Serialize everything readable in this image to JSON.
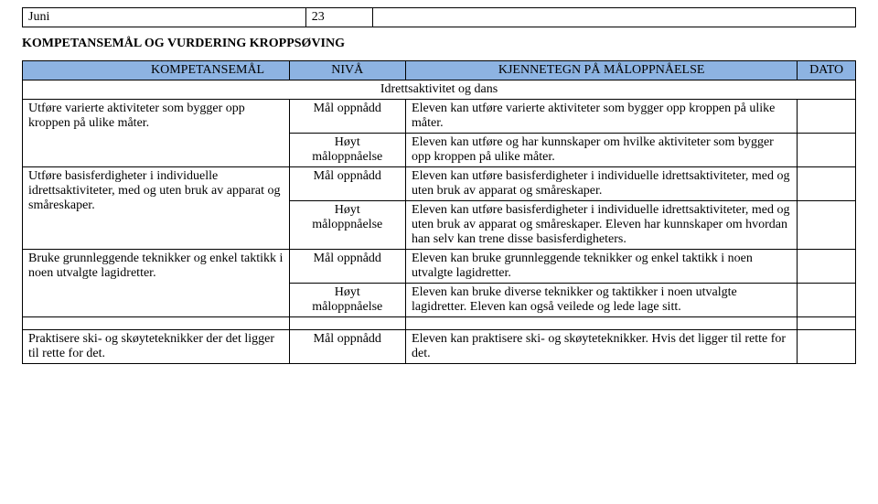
{
  "top": {
    "month": "Juni",
    "num": "23",
    "blank": ""
  },
  "heading": "KOMPETANSEMÅL OG VURDERING KROPPSØVING",
  "hdr": {
    "komp": "KOMPETANSEMÅL",
    "niva": "NIVÅ",
    "kjenn": "KJENNETEGN PÅ MÅLOPPNÅELSE",
    "dato": "DATO"
  },
  "sub": "Idrettsaktivitet og dans",
  "lvl": {
    "maal": "Mål oppnådd",
    "hoyt1": "Høyt",
    "hoyt2": "måloppnåelse"
  },
  "r1": {
    "komp": "Utføre varierte aktiviteter som bygger opp kroppen på ulike måter.",
    "a": "Eleven kan utføre varierte aktiviteter som bygger opp kroppen på ulike måter.",
    "b": "Eleven kan utføre og har kunnskaper om hvilke aktiviteter som bygger opp kroppen på ulike måter."
  },
  "r2": {
    "komp": " Utføre basisferdigheter i individuelle idrettsaktiviteter, med og uten bruk av apparat og småreskaper.",
    "a": "Eleven kan utføre basisferdigheter i individuelle idrettsaktiviteter, med og uten bruk av apparat og småreskaper.",
    "b": "Eleven kan utføre basisferdigheter i individuelle idrettsaktiviteter, med og uten bruk av apparat og småreskaper. Eleven har kunnskaper om hvordan han selv kan trene disse basisferdigheters."
  },
  "r3": {
    "komp": "Bruke grunnleggende teknikker og enkel taktikk i noen utvalgte lagidretter.",
    "a": "Eleven kan bruke grunnleggende teknikker og enkel taktikk i noen utvalgte lagidretter.",
    "b": "Eleven kan bruke diverse teknikker og taktikker i noen utvalgte lagidretter. Eleven kan også veilede og lede lage sitt."
  },
  "r4": {
    "komp": "Praktisere ski- og skøyteteknikker der det ligger til rette for det.",
    "a": "Eleven kan praktisere ski- og skøyteteknikker. Hvis det ligger til rette for det."
  },
  "colors": {
    "headerBg": "#8db3e2",
    "border": "#000000",
    "text": "#000000",
    "bg": "#ffffff"
  }
}
